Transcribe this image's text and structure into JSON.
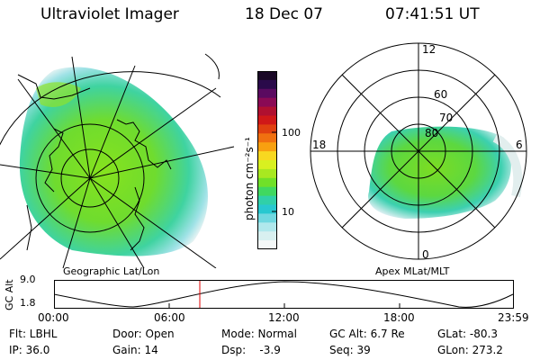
{
  "header": {
    "instrument": "Ultraviolet Imager",
    "date": "18 Dec 07",
    "time": "07:41:51 UT"
  },
  "left_panel": {
    "caption": "Geographic Lat/Lon"
  },
  "right_panel": {
    "caption": "Apex MLat/MLT",
    "mlt_labels": {
      "top": "12",
      "left": "18",
      "right": "6",
      "bottom": "0"
    },
    "lat_labels": [
      "60",
      "70",
      "80"
    ]
  },
  "colorbar": {
    "unit_label": "photon cm⁻²s⁻¹",
    "ticks": [
      "100",
      "10"
    ],
    "colors": [
      "#1a0826",
      "#2a0a4a",
      "#5a0a60",
      "#8a0a55",
      "#b01030",
      "#d01818",
      "#e04010",
      "#f07010",
      "#f8a010",
      "#f8d820",
      "#d8f020",
      "#a8e820",
      "#70e028",
      "#40d860",
      "#30d0a8",
      "#28c8d0",
      "#70d8e0",
      "#b0e8ec",
      "#d8f0f0",
      "#f4f8f8"
    ]
  },
  "timeline": {
    "axis_label": "GC Alt",
    "y_ticks": [
      "9.0",
      "1.8"
    ],
    "x_ticks": [
      "00:00",
      "06:00",
      "12:00",
      "18:00",
      "23:59"
    ],
    "marker_time": "07:41:51"
  },
  "footer": {
    "flt": "Flt: LBHL",
    "ip": "IP: 36.0",
    "door": "Door: Open",
    "gain": "Gain: 14",
    "mode": "Mode: Normal",
    "dsp": "Dsp:    -3.9",
    "gcalt": "GC Alt: 6.7 Re",
    "seq": "Seq: 39",
    "glat": "GLat: -80.3",
    "glon": "GLon: 273.2"
  }
}
